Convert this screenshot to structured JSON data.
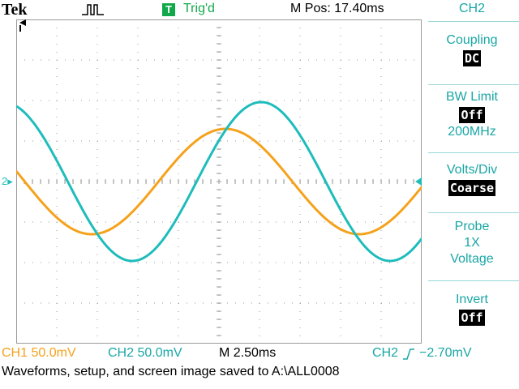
{
  "header": {
    "brand": "Tek",
    "acquisition_icon": "acquire-run-icon",
    "trigger_badge": "T",
    "trigger_status": "Trig'd",
    "horizontal_position": "M Pos: 17.40ms"
  },
  "menu": {
    "title": "CH2",
    "coupling": {
      "label": "Coupling",
      "value": "DC"
    },
    "bw_limit": {
      "label": "BW Limit",
      "value": "Off",
      "extra": "200MHz"
    },
    "volts_div": {
      "label": "Volts/Div",
      "value": "Coarse"
    },
    "probe": {
      "label": "Probe",
      "line2": "1X",
      "line3": "Voltage"
    },
    "invert": {
      "label": "Invert",
      "value": "Off"
    }
  },
  "readouts": {
    "ch1": "CH1  50.0mV",
    "ch2": "CH2  50.0mV",
    "timebase": "M 2.50ms",
    "trigger_source": "CH2",
    "trigger_level": "−2.70mV"
  },
  "message": "Waveforms, setup, and screen image saved to A:\\ALL0008",
  "screen": {
    "ch2_ground_marker": "2",
    "colors": {
      "ch1": "#f5a21b",
      "ch2": "#1fbcbc",
      "grid": "#9a9a9a",
      "ui": "#1aa6a6",
      "trig": "#11a84a"
    }
  }
}
